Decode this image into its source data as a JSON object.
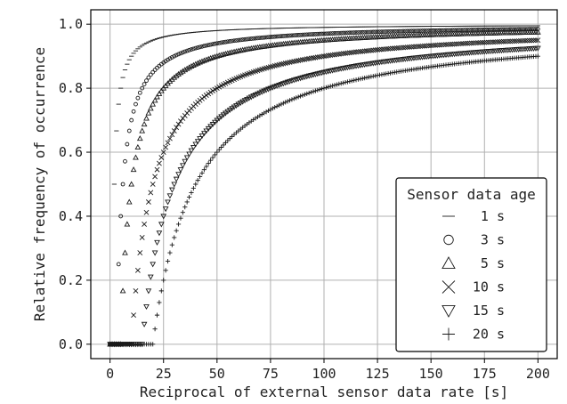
{
  "chart_data": {
    "type": "scatter",
    "title": "",
    "xlabel": "Reciprocal of external sensor data rate [s]",
    "ylabel": "Relative frequency of occurrence",
    "xlim": [
      -9,
      209
    ],
    "ylim": [
      -0.045,
      1.045
    ],
    "xticks": [
      0,
      25,
      50,
      75,
      100,
      125,
      150,
      175,
      200
    ],
    "yticks": [
      0.0,
      0.2,
      0.4,
      0.6,
      0.8,
      1.0
    ],
    "xtick_labels": [
      "0",
      "25",
      "50",
      "75",
      "100",
      "125",
      "150",
      "175",
      "200"
    ],
    "ytick_labels": [
      "0.0",
      "0.2",
      "0.4",
      "0.6",
      "0.8",
      "1.0"
    ],
    "grid": true,
    "legend": {
      "title": "Sensor data age",
      "position": "lower-right"
    },
    "x": {
      "start": 0,
      "end": 200,
      "step": 1
    },
    "formula": "y = max(0, 1 - age / x)",
    "series": [
      {
        "name": "1 s",
        "age": 1,
        "marker": "hline",
        "sample_values": [
          {
            "x": 10,
            "y": 0.9
          },
          {
            "x": 50,
            "y": 0.98
          },
          {
            "x": 200,
            "y": 0.995
          }
        ]
      },
      {
        "name": "3 s",
        "age": 3,
        "marker": "circle",
        "sample_values": [
          {
            "x": 10,
            "y": 0.7
          },
          {
            "x": 50,
            "y": 0.94
          },
          {
            "x": 200,
            "y": 0.985
          }
        ]
      },
      {
        "name": "5 s",
        "age": 5,
        "marker": "triangle-up",
        "sample_values": [
          {
            "x": 10,
            "y": 0.5
          },
          {
            "x": 50,
            "y": 0.9
          },
          {
            "x": 200,
            "y": 0.975
          }
        ]
      },
      {
        "name": "10 s",
        "age": 10,
        "marker": "x",
        "sample_values": [
          {
            "x": 20,
            "y": 0.5
          },
          {
            "x": 50,
            "y": 0.8
          },
          {
            "x": 200,
            "y": 0.95
          }
        ]
      },
      {
        "name": "15 s",
        "age": 15,
        "marker": "triangle-down",
        "sample_values": [
          {
            "x": 30,
            "y": 0.5
          },
          {
            "x": 50,
            "y": 0.7
          },
          {
            "x": 200,
            "y": 0.925
          }
        ]
      },
      {
        "name": "20 s",
        "age": 20,
        "marker": "plus",
        "sample_values": [
          {
            "x": 40,
            "y": 0.5
          },
          {
            "x": 50,
            "y": 0.6
          },
          {
            "x": 200,
            "y": 0.9
          }
        ]
      }
    ],
    "colors": {
      "marker": "#1a1a1a",
      "grid": "#b0b0b0",
      "axes": "#000000",
      "background": "#ffffff"
    }
  }
}
